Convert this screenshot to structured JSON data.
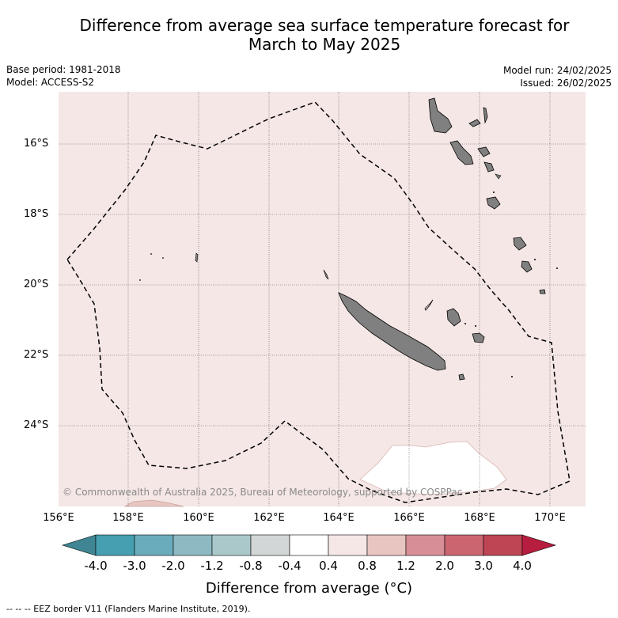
{
  "title_line1": "Difference from average sea surface temperature forecast for",
  "title_line2": "March to May 2025",
  "meta": {
    "base_period": "Base period: 1981-2018",
    "model": "Model: ACCESS-S2",
    "model_run": "Model run: 24/02/2025",
    "issued": "Issued: 26/02/2025"
  },
  "axes": {
    "lat_ticks": [
      "16°S",
      "18°S",
      "20°S",
      "22°S",
      "24°S"
    ],
    "lon_ticks": [
      "156°E",
      "158°E",
      "160°E",
      "162°E",
      "164°E",
      "166°E",
      "168°E",
      "170°E"
    ]
  },
  "copyright": "© Commonwealth of Australia 2025, Bureau of Meteorology, supported by COSPPac",
  "colorbar": {
    "title": "Difference from average (°C)",
    "labels": [
      "-4.0",
      "-3.0",
      "-2.0",
      "-1.2",
      "-0.8",
      "-0.4",
      "0.4",
      "0.8",
      "1.2",
      "2.0",
      "3.0",
      "4.0"
    ],
    "colors": [
      "#459fb0",
      "#6aacbb",
      "#8db9c3",
      "#aac8ca",
      "#d2d6d6",
      "#ffffff",
      "#f4e7e5",
      "#e8c5c1",
      "#d88e96",
      "#cb6671",
      "#be4553"
    ],
    "under_color": "#3f8593",
    "over_color": "#b71d3e"
  },
  "map": {
    "ocean_color": "#f4e7e5",
    "land_color": "#808080",
    "neutral_color": "#ffffff",
    "warm_color": "#e8c5c1"
  },
  "footnote": "--  --  -- EEZ border V11 (Flanders Marine Institute, 2019)."
}
